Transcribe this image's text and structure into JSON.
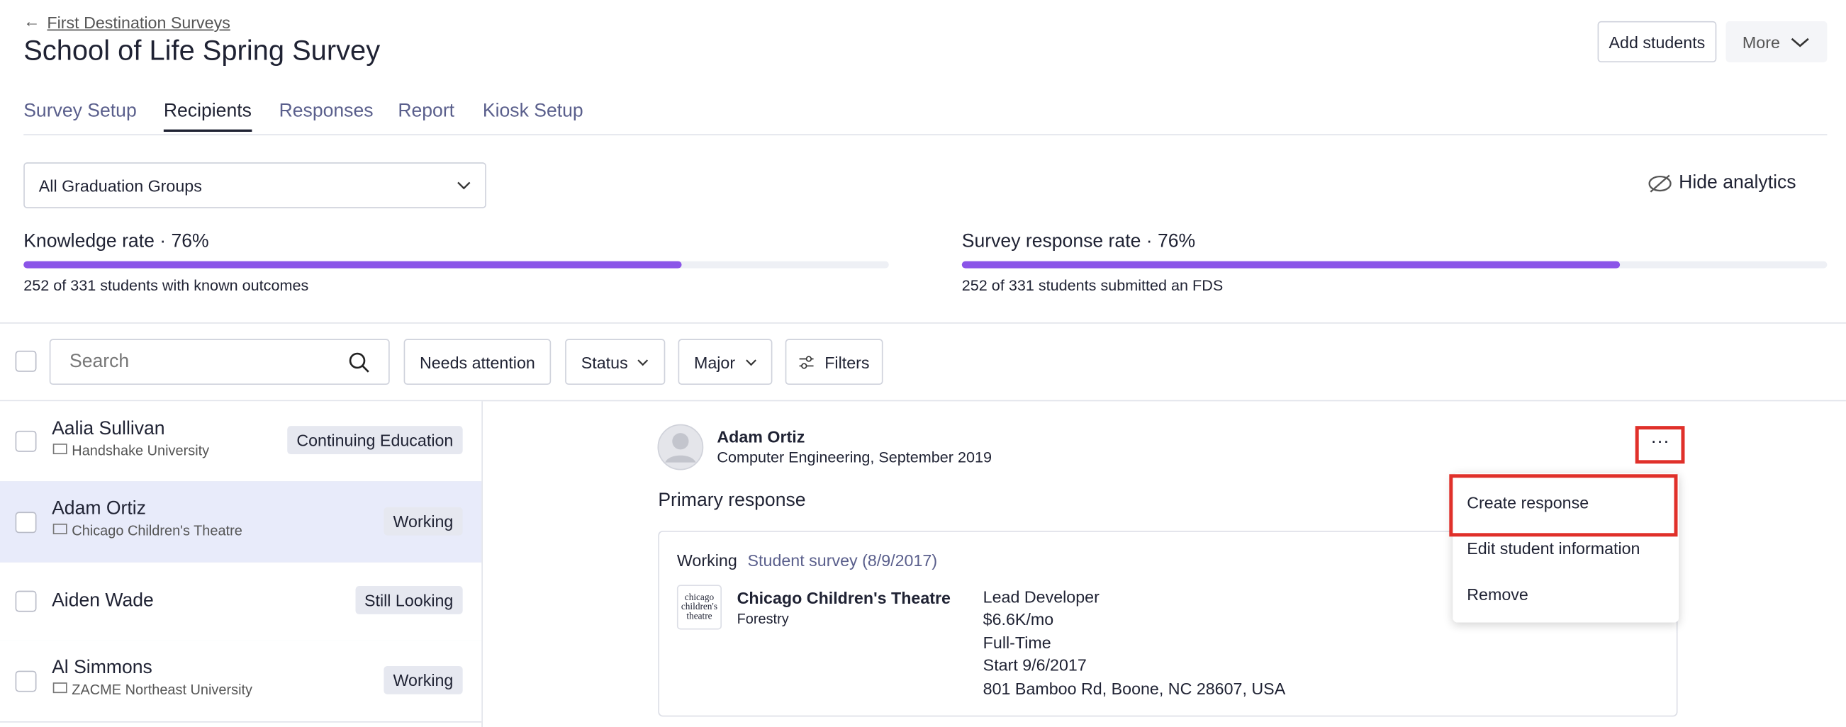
{
  "header": {
    "back_link": "First Destination Surveys",
    "title": "School of Life Spring Survey",
    "buttons": [
      "Add students",
      "More"
    ]
  },
  "tabs": {
    "items": [
      "Survey Setup",
      "Recipients",
      "Responses",
      "Report",
      "Kiosk Setup"
    ],
    "active": 1
  },
  "graduation_filter": "All Graduation Groups",
  "analytics_toggle": "Hide analytics",
  "metrics": [
    {
      "label": "Knowledge rate · 76%",
      "value": 76,
      "description": "252 of 331 students with known outcomes"
    },
    {
      "label": "Survey response rate · 76%",
      "value": 76,
      "description": "252 of 331 students submitted an FDS"
    }
  ],
  "toolbar": {
    "search_placeholder": "Search",
    "buttons": [
      "Needs attention",
      "Status",
      "Major",
      "Filters"
    ]
  },
  "students": [
    {
      "name": "Aalia Sullivan",
      "org": "Handshake University",
      "status": "Continuing Education"
    },
    {
      "name": "Adam Ortiz",
      "org": "Chicago Children's Theatre",
      "status": "Working"
    },
    {
      "name": "Aiden Wade",
      "org": null,
      "status": "Still Looking"
    },
    {
      "name": "Al Simmons",
      "org": "ZACME Northeast University",
      "status": "Working"
    }
  ],
  "selected_student": 1,
  "detail": {
    "name": "Adam Ortiz",
    "subtitle": "Computer Engineering, September 2019",
    "section": "Primary response",
    "card": {
      "status": "Working",
      "source": "Student survey (8/9/2017)",
      "logo": "chicago children's theatre",
      "employer": "Chicago Children's Theatre",
      "department": "Forestry",
      "details": [
        "Lead Developer",
        "$6.6K/mo",
        "Full-Time",
        "Start 9/6/2017",
        "801 Bamboo Rd, Boone, NC 28607, USA"
      ]
    }
  },
  "menu": [
    "Create response",
    "Edit student information",
    "Remove"
  ]
}
